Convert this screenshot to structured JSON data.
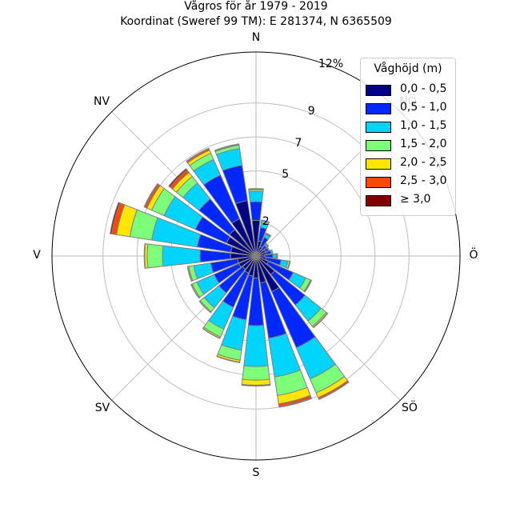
{
  "title_line1": "Vågros för år 1979 - 2019",
  "title_line2": "Koordinat (Sweref 99 TM): E 281374, N 6365509",
  "compass": {
    "N": "N",
    "NE": "NÖ",
    "E": "Ö",
    "SE": "SÖ",
    "S": "S",
    "SW": "SV",
    "W": "V",
    "NW": "NV"
  },
  "legend": {
    "title": "Våghöjd (m)",
    "items": [
      {
        "label": "0,0 - 0,5",
        "color": "#000080"
      },
      {
        "label": "0,5 - 1,0",
        "color": "#0028ff"
      },
      {
        "label": "1,0 - 1,5",
        "color": "#00d4ff"
      },
      {
        "label": "1,5 - 2,0",
        "color": "#7dff7a"
      },
      {
        "label": "2,0 - 2,5",
        "color": "#ffe600"
      },
      {
        "label": "2,5 - 3,0",
        "color": "#ff4800"
      },
      {
        "label": "≥ 3,0",
        "color": "#800000"
      }
    ]
  },
  "chart_data": {
    "type": "wind_rose",
    "title": "Vågros för år 1979 - 2019",
    "subtitle": "Koordinat (Sweref 99 TM): E 281374, N 6365509",
    "radial_unit": "%",
    "radial_max": 12,
    "radial_ticks": [
      2,
      5,
      7,
      9,
      12
    ],
    "radial_tick_labels": [
      "2",
      "5",
      "7",
      "9",
      "12%"
    ],
    "sector_width_deg": 15,
    "directions_deg": [
      0,
      15,
      30,
      45,
      60,
      75,
      90,
      105,
      120,
      135,
      150,
      165,
      180,
      195,
      210,
      225,
      240,
      255,
      270,
      285,
      300,
      315,
      330,
      345
    ],
    "series": [
      {
        "name": "0,0 - 0,5",
        "values": [
          2.1,
          0.9,
          0.6,
          0.5,
          0.6,
          0.6,
          0.5,
          0.6,
          0.8,
          1.4,
          2.3,
          1.6,
          1.3,
          1.2,
          1.1,
          1.0,
          1.1,
          1.1,
          1.5,
          1.5,
          1.9,
          2.0,
          2.4,
          3.3
        ]
      },
      {
        "name": "0,5 - 1,0",
        "values": [
          1.1,
          0.8,
          0.6,
          0.3,
          0.2,
          0.3,
          0.5,
          0.9,
          1.6,
          2.3,
          3.6,
          3.3,
          2.8,
          2.6,
          2.2,
          1.8,
          1.6,
          1.6,
          1.8,
          2.0,
          2.0,
          2.3,
          2.8,
          2.1
        ]
      },
      {
        "name": "1,0 - 1,5",
        "values": [
          0.6,
          0.3,
          0.2,
          0.1,
          0.05,
          0.1,
          0.2,
          0.4,
          0.8,
          1.2,
          2.0,
          2.3,
          2.4,
          1.8,
          1.4,
          1.1,
          1.1,
          1.0,
          2.2,
          2.7,
          2.0,
          1.2,
          1.0,
          1.0
        ]
      },
      {
        "name": "1,5 - 2,0",
        "values": [
          0.1,
          0.1,
          0.05,
          0.05,
          0.0,
          0.0,
          0.05,
          0.1,
          0.3,
          0.4,
          0.9,
          1.1,
          0.8,
          0.6,
          0.5,
          0.3,
          0.3,
          0.3,
          0.9,
          1.3,
          0.8,
          0.5,
          0.4,
          0.2
        ]
      },
      {
        "name": "2,0 - 2,5",
        "values": [
          0.05,
          0.03,
          0.02,
          0.0,
          0.0,
          0.0,
          0.02,
          0.03,
          0.05,
          0.08,
          0.3,
          0.5,
          0.3,
          0.12,
          0.08,
          0.06,
          0.06,
          0.06,
          0.15,
          0.8,
          0.3,
          0.3,
          0.2,
          0.05
        ]
      },
      {
        "name": "2,5 - 3,0",
        "values": [
          0.02,
          0.01,
          0.01,
          0.0,
          0.0,
          0.0,
          0.0,
          0.01,
          0.02,
          0.03,
          0.1,
          0.15,
          0.05,
          0.03,
          0.02,
          0.01,
          0.02,
          0.02,
          0.03,
          0.3,
          0.15,
          0.2,
          0.1,
          0.02
        ]
      },
      {
        "name": "≥ 3,0",
        "values": [
          0.0,
          0.0,
          0.0,
          0.0,
          0.0,
          0.0,
          0.0,
          0.0,
          0.0,
          0.0,
          0.02,
          0.05,
          0.0,
          0.0,
          0.0,
          0.0,
          0.0,
          0.0,
          0.0,
          0.08,
          0.04,
          0.08,
          0.02,
          0.0
        ]
      }
    ],
    "legend_position": "top-right",
    "grid": true
  }
}
